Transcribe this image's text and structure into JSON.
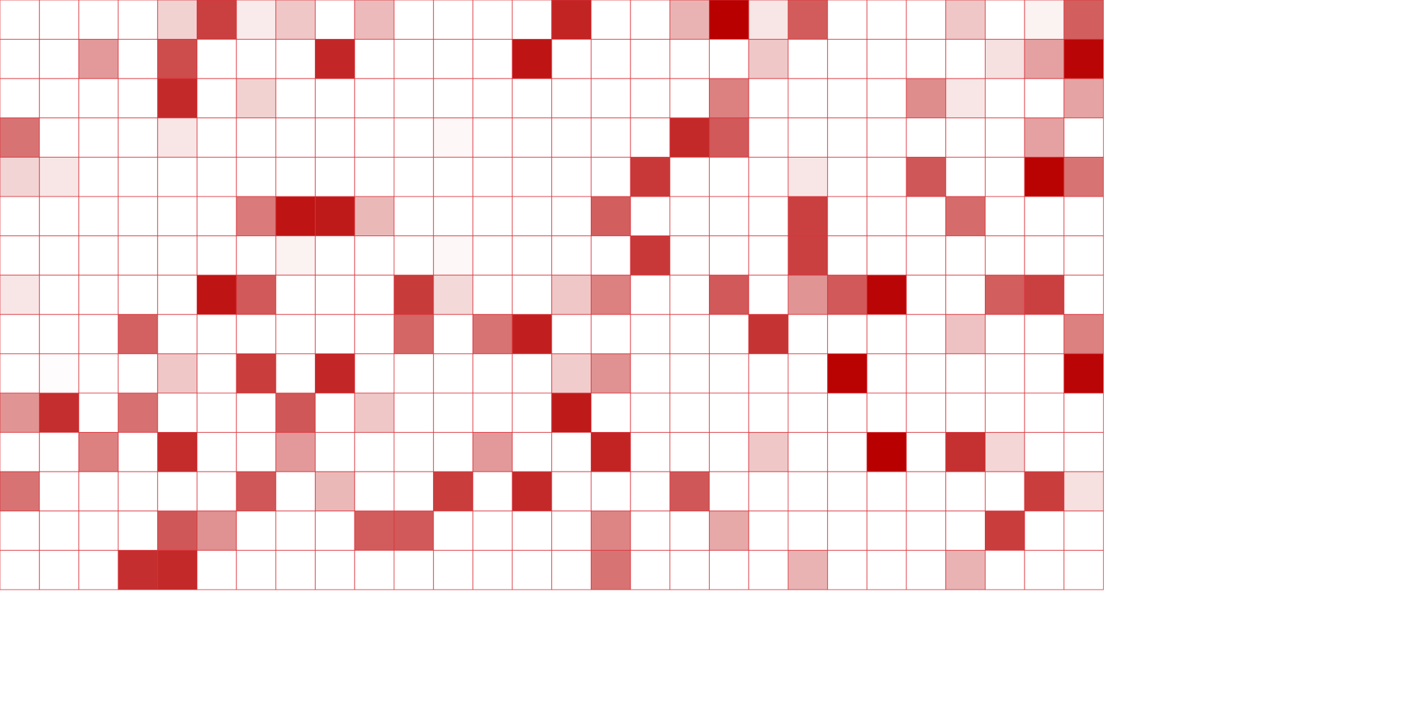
{
  "chart_data": {
    "type": "heatmap",
    "rows": 15,
    "cols": 28,
    "colors": {
      "high": "#b80000",
      "low": "#ffffff",
      "grid": "#d9343c",
      "background": "#ffffff"
    },
    "values": [
      [
        0,
        0,
        0,
        0,
        0.18,
        0.75,
        0.08,
        0.22,
        0,
        0.27,
        0,
        0,
        0,
        0,
        0.86,
        0,
        0,
        0.3,
        1.0,
        0.1,
        0.64,
        0,
        0,
        0,
        0.22,
        0,
        0.05,
        0.63
      ],
      [
        0,
        0,
        0.4,
        0,
        0.7,
        0,
        0,
        0,
        0.85,
        0,
        0,
        0,
        0,
        0.92,
        0,
        0,
        0,
        0,
        0,
        0.22,
        0,
        0,
        0,
        0,
        0,
        0.12,
        0.37,
        0.98
      ],
      [
        0,
        0,
        0,
        0,
        0.84,
        0,
        0.18,
        0,
        0,
        0,
        0,
        0,
        0,
        0,
        0,
        0,
        0,
        0,
        0.5,
        0,
        0,
        0,
        0,
        0.45,
        0.1,
        0,
        0,
        0.36
      ],
      [
        0.55,
        0,
        0,
        0,
        0.1,
        0,
        0,
        0,
        0,
        0,
        0,
        0.03,
        0,
        0,
        0,
        0,
        0,
        0.84,
        0.65,
        0,
        0,
        0,
        0,
        0,
        0,
        0,
        0.37,
        0
      ],
      [
        0.17,
        0.1,
        0,
        0,
        0,
        0,
        0,
        0,
        0,
        0,
        0,
        0,
        0,
        0,
        0,
        0,
        0.78,
        0,
        0,
        0,
        0.1,
        0,
        0,
        0.66,
        0,
        0,
        0.99,
        0.55
      ],
      [
        0,
        0,
        0,
        0,
        0,
        0,
        0.52,
        0.92,
        0.9,
        0.28,
        0,
        0,
        0,
        0,
        0,
        0.63,
        0,
        0,
        0,
        0,
        0.75,
        0,
        0,
        0,
        0.58,
        0,
        0,
        0
      ],
      [
        0,
        0,
        0,
        0,
        0,
        0,
        0,
        0.05,
        0,
        0,
        0,
        0.03,
        0,
        0,
        0,
        0,
        0.78,
        0,
        0,
        0,
        0.75,
        0,
        0,
        0,
        0,
        0,
        0,
        0
      ],
      [
        0.1,
        0,
        0,
        0,
        0,
        0.92,
        0.65,
        0,
        0,
        0,
        0.77,
        0.15,
        0,
        0,
        0.22,
        0.5,
        0,
        0,
        0.65,
        0,
        0.42,
        0.65,
        0.98,
        0,
        0,
        0.63,
        0.75,
        0
      ],
      [
        0,
        0,
        0,
        0.62,
        0,
        0,
        0,
        0,
        0,
        0,
        0.6,
        0,
        0.55,
        0.88,
        0,
        0,
        0,
        0,
        0,
        0.8,
        0,
        0,
        0,
        0,
        0.24,
        0,
        0,
        0.5
      ],
      [
        0,
        0.01,
        0,
        0,
        0.22,
        0,
        0.76,
        0,
        0.85,
        0,
        0,
        0,
        0,
        0,
        0.2,
        0.43,
        0,
        0,
        0,
        0,
        0,
        0.99,
        0,
        0,
        0,
        0,
        0,
        0.98
      ],
      [
        0.42,
        0.82,
        0,
        0.56,
        0,
        0,
        0,
        0.66,
        0,
        0.22,
        0,
        0,
        0,
        0,
        0.9,
        0,
        0,
        0,
        0,
        0,
        0,
        0,
        0,
        0,
        0,
        0,
        0,
        0
      ],
      [
        0,
        0,
        0.5,
        0,
        0.83,
        0,
        0,
        0.4,
        0,
        0,
        0,
        0,
        0.4,
        0,
        0,
        0.86,
        0,
        0,
        0,
        0.22,
        0,
        0,
        1.0,
        0,
        0.81,
        0.16,
        0,
        0
      ],
      [
        0.55,
        0,
        0,
        0,
        0,
        0,
        0.66,
        0,
        0.28,
        0,
        0,
        0.76,
        0,
        0.84,
        0,
        0,
        0,
        0.66,
        0,
        0,
        0,
        0,
        0,
        0,
        0,
        0,
        0.76,
        0.12
      ],
      [
        0,
        0,
        0,
        0,
        0.66,
        0.43,
        0,
        0,
        0,
        0.64,
        0.65,
        0,
        0,
        0,
        0,
        0.48,
        0,
        0,
        0.34,
        0,
        0,
        0,
        0,
        0,
        0,
        0.76,
        0,
        0
      ],
      [
        0,
        0,
        0,
        0.82,
        0.84,
        0,
        0,
        0,
        0,
        0,
        0,
        0,
        0,
        0,
        0,
        0.55,
        0,
        0,
        0,
        0,
        0.3,
        0,
        0,
        0,
        0.3,
        0,
        0,
        0
      ]
    ]
  }
}
